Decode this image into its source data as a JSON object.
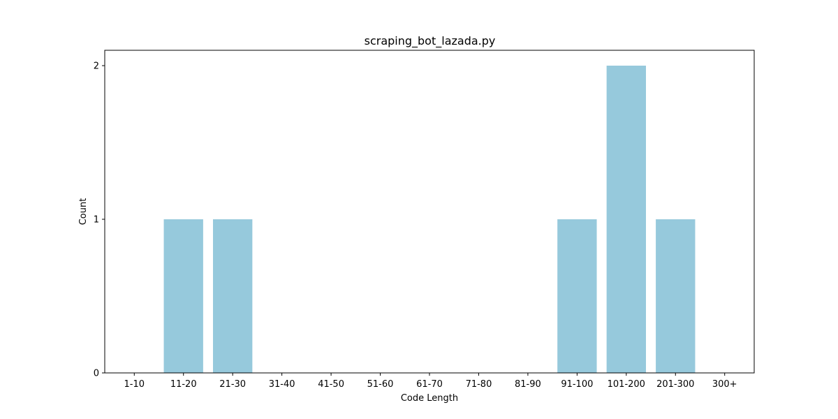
{
  "chart_data": {
    "type": "bar",
    "title": "scraping_bot_lazada.py",
    "xlabel": "Code Length",
    "ylabel": "Count",
    "categories": [
      "1-10",
      "11-20",
      "21-30",
      "31-40",
      "41-50",
      "51-60",
      "61-70",
      "71-80",
      "81-90",
      "91-100",
      "101-200",
      "201-300",
      "300+"
    ],
    "values": [
      0,
      1,
      1,
      0,
      0,
      0,
      0,
      0,
      0,
      1,
      2,
      1,
      0
    ],
    "yticks": [
      0,
      1,
      2
    ],
    "ylim": [
      0,
      2.1
    ],
    "grid": false,
    "bar_color": "#96c9dc"
  }
}
